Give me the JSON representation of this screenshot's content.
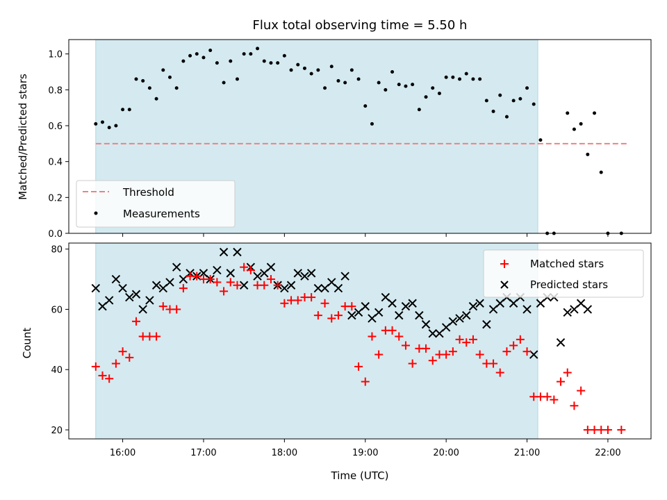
{
  "chart_data": [
    {
      "type": "scatter",
      "title": "Flux total observing time = 5.50 h",
      "xlabel": "",
      "ylabel": "Matched/Predicted stars",
      "ylim": [
        0,
        1.08
      ],
      "yticks": [
        "0.0",
        "0.2",
        "0.4",
        "0.6",
        "0.8",
        "1.0"
      ],
      "ytick_values": [
        0,
        0.2,
        0.4,
        0.6,
        0.8,
        1.0
      ],
      "shaded_span": [
        "15:40",
        "21:08"
      ],
      "shade_color": "#d4eaf0",
      "threshold": {
        "name": "Threshold",
        "value": 0.5,
        "x_range": [
          "15:40",
          "22:15"
        ],
        "color": "#f08080"
      },
      "legend": {
        "position": "lower-left",
        "entries": [
          "Threshold",
          "Measurements"
        ]
      },
      "series": [
        {
          "name": "Measurements",
          "color": "#000000",
          "x": [
            "15:40",
            "15:45",
            "15:50",
            "15:55",
            "16:00",
            "16:05",
            "16:10",
            "16:15",
            "16:20",
            "16:25",
            "16:30",
            "16:35",
            "16:40",
            "16:45",
            "16:50",
            "16:55",
            "17:00",
            "17:05",
            "17:10",
            "17:15",
            "17:20",
            "17:25",
            "17:30",
            "17:35",
            "17:40",
            "17:45",
            "17:50",
            "17:55",
            "18:00",
            "18:05",
            "18:10",
            "18:15",
            "18:20",
            "18:25",
            "18:30",
            "18:35",
            "18:40",
            "18:45",
            "18:50",
            "18:55",
            "19:00",
            "19:05",
            "19:10",
            "19:15",
            "19:20",
            "19:25",
            "19:30",
            "19:35",
            "19:40",
            "19:45",
            "19:50",
            "19:55",
            "20:00",
            "20:05",
            "20:10",
            "20:15",
            "20:20",
            "20:25",
            "20:30",
            "20:35",
            "20:40",
            "20:45",
            "20:50",
            "20:55",
            "21:00",
            "21:05",
            "21:10",
            "21:15",
            "21:20",
            "21:30",
            "21:35",
            "21:40",
            "21:45",
            "21:50",
            "21:55",
            "22:00",
            "22:10"
          ],
          "y": [
            0.61,
            0.62,
            0.59,
            0.6,
            0.69,
            0.69,
            0.86,
            0.85,
            0.81,
            0.75,
            0.91,
            0.87,
            0.81,
            0.96,
            0.99,
            1.0,
            0.98,
            1.02,
            0.95,
            0.84,
            0.96,
            0.86,
            1.0,
            1.0,
            1.03,
            0.96,
            0.95,
            0.95,
            0.99,
            0.91,
            0.94,
            0.92,
            0.89,
            0.91,
            0.81,
            0.93,
            0.85,
            0.84,
            0.91,
            0.86,
            0.71,
            0.61,
            0.84,
            0.8,
            0.9,
            0.83,
            0.82,
            0.83,
            0.69,
            0.76,
            0.81,
            0.78,
            0.87,
            0.87,
            0.86,
            0.89,
            0.86,
            0.86,
            0.74,
            0.68,
            0.77,
            0.65,
            0.74,
            0.75,
            0.81,
            0.72,
            0.52,
            0.0,
            0.0,
            0.67,
            0.58,
            0.61,
            0.44,
            0.67,
            0.34,
            0.0,
            0.0
          ]
        }
      ]
    },
    {
      "type": "scatter",
      "title": "",
      "xlabel": "Time (UTC)",
      "ylabel": "Count",
      "ylim": [
        17,
        82
      ],
      "yticks": [
        "20",
        "40",
        "60",
        "80"
      ],
      "ytick_values": [
        20,
        40,
        60,
        80
      ],
      "xticks": [
        "16:00",
        "17:00",
        "18:00",
        "19:00",
        "20:00",
        "21:00",
        "22:00"
      ],
      "legend": {
        "position": "top-right",
        "entries": [
          "Matched stars",
          "Predicted stars"
        ]
      },
      "series": [
        {
          "name": "Matched stars",
          "marker": "plus",
          "color": "#ff0000",
          "x": [
            "15:40",
            "15:45",
            "15:50",
            "15:55",
            "16:00",
            "16:05",
            "16:10",
            "16:15",
            "16:20",
            "16:25",
            "16:30",
            "16:35",
            "16:40",
            "16:45",
            "16:50",
            "16:55",
            "17:00",
            "17:05",
            "17:10",
            "17:15",
            "17:20",
            "17:25",
            "17:30",
            "17:35",
            "17:40",
            "17:45",
            "17:50",
            "17:55",
            "18:00",
            "18:05",
            "18:10",
            "18:15",
            "18:20",
            "18:25",
            "18:30",
            "18:35",
            "18:40",
            "18:45",
            "18:50",
            "18:55",
            "19:00",
            "19:05",
            "19:10",
            "19:15",
            "19:20",
            "19:25",
            "19:30",
            "19:35",
            "19:40",
            "19:45",
            "19:50",
            "19:55",
            "20:00",
            "20:05",
            "20:10",
            "20:15",
            "20:20",
            "20:25",
            "20:30",
            "20:35",
            "20:40",
            "20:45",
            "20:50",
            "20:55",
            "21:00",
            "21:05",
            "21:10",
            "21:15",
            "21:20",
            "21:25",
            "21:30",
            "21:35",
            "21:40",
            "21:45",
            "21:50",
            "21:55",
            "22:00",
            "22:10"
          ],
          "y": [
            41,
            38,
            37,
            42,
            46,
            44,
            56,
            51,
            51,
            51,
            61,
            60,
            60,
            67,
            71,
            71,
            70,
            70,
            69,
            66,
            69,
            68,
            74,
            73,
            68,
            68,
            70,
            68,
            62,
            63,
            63,
            64,
            64,
            58,
            62,
            57,
            58,
            61,
            61,
            41,
            36,
            51,
            45,
            53,
            53,
            51,
            48,
            42,
            47,
            47,
            43,
            45,
            45,
            46,
            50,
            49,
            50,
            45,
            42,
            42,
            39,
            46,
            48,
            50,
            46,
            31,
            31,
            31,
            30,
            36,
            39,
            28,
            33,
            20,
            20,
            20,
            20,
            20
          ]
        },
        {
          "name": "Predicted stars",
          "marker": "x",
          "color": "#000000",
          "x": [
            "15:40",
            "15:45",
            "15:50",
            "15:55",
            "16:00",
            "16:05",
            "16:10",
            "16:15",
            "16:20",
            "16:25",
            "16:30",
            "16:35",
            "16:40",
            "16:45",
            "16:50",
            "16:55",
            "17:00",
            "17:05",
            "17:10",
            "17:15",
            "17:20",
            "17:25",
            "17:30",
            "17:35",
            "17:40",
            "17:45",
            "17:50",
            "17:55",
            "18:00",
            "18:05",
            "18:10",
            "18:15",
            "18:20",
            "18:25",
            "18:30",
            "18:35",
            "18:40",
            "18:45",
            "18:50",
            "18:55",
            "19:00",
            "19:05",
            "19:10",
            "19:15",
            "19:20",
            "19:25",
            "19:30",
            "19:35",
            "19:40",
            "19:45",
            "19:50",
            "19:55",
            "20:00",
            "20:05",
            "20:10",
            "20:15",
            "20:20",
            "20:25",
            "20:30",
            "20:35",
            "20:40",
            "20:45",
            "20:50",
            "20:55",
            "21:00",
            "21:05",
            "21:10",
            "21:15",
            "21:20",
            "21:25",
            "21:30",
            "21:35",
            "21:40",
            "21:45"
          ],
          "y": [
            67,
            61,
            63,
            70,
            67,
            64,
            65,
            60,
            63,
            68,
            67,
            69,
            74,
            70,
            72,
            71,
            72,
            70,
            73,
            79,
            72,
            79,
            68,
            74,
            71,
            72,
            74,
            68,
            67,
            68,
            72,
            71,
            72,
            67,
            67,
            69,
            67,
            71,
            58,
            59,
            61,
            57,
            59,
            64,
            62,
            58,
            61,
            62,
            58,
            55,
            52,
            52,
            54,
            56,
            57,
            58,
            61,
            62,
            55,
            60,
            62,
            64,
            62,
            64,
            60,
            45,
            62,
            64,
            64,
            49,
            59,
            60,
            62,
            60
          ]
        }
      ]
    }
  ]
}
